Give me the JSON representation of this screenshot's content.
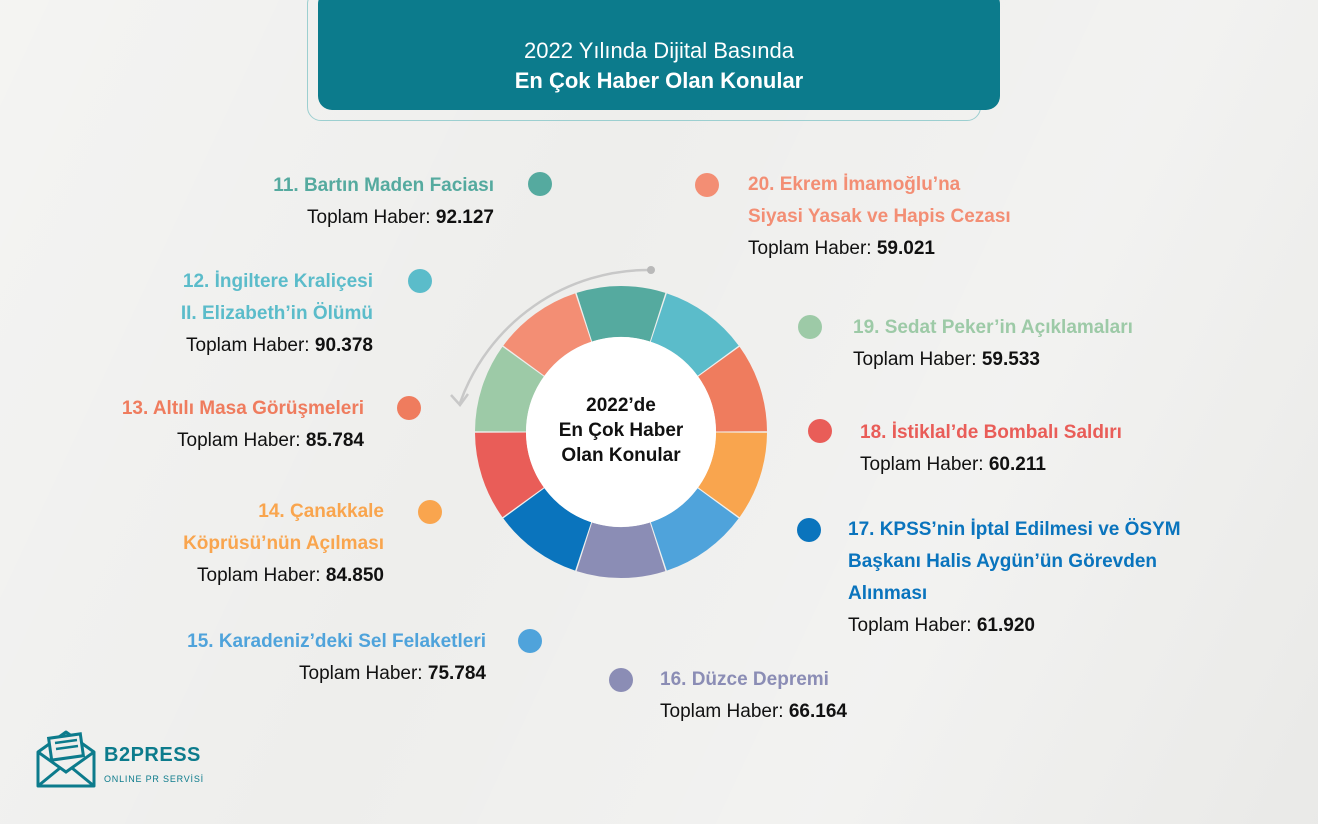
{
  "header": {
    "line1": "2022 Yılında Dijital Basında",
    "line2": "En Çok Haber Olan Konular"
  },
  "center": {
    "line1": "2022’de",
    "line2": "En Çok Haber",
    "line3": "Olan Konular"
  },
  "total_prefix": "Toplam Haber: ",
  "logo": {
    "brand": "B2PRESS",
    "subtitle": "ONLINE PR SERVİSİ"
  },
  "chart_data": {
    "type": "pie",
    "subtitle": "",
    "series": [
      {
        "values": [
          92127,
          90378,
          85784,
          84850,
          75784,
          66164,
          61920,
          60211,
          59533,
          59021
        ]
      }
    ],
    "items": [
      {
        "name": "11. Bartın Maden Faciası",
        "name_lines": [
          "11. Bartın Maden Faciası"
        ],
        "value": 92127,
        "value_label": "92.127",
        "color": "#55aa9f"
      },
      {
        "name": "12. İngiltere Kraliçesi II. Elizabeth’in Ölümü",
        "name_lines": [
          "12. İngiltere Kraliçesi",
          "II. Elizabeth’in Ölümü"
        ],
        "value": 90378,
        "value_label": "90.378",
        "color": "#5bbcca"
      },
      {
        "name": "13. Altılı Masa Görüşmeleri",
        "name_lines": [
          "13. Altılı Masa Görüşmeleri"
        ],
        "value": 85784,
        "value_label": "85.784",
        "color": "#ef7c5e"
      },
      {
        "name": "14. Çanakkale Köprüsü’nün Açılması",
        "name_lines": [
          "14. Çanakkale",
          "Köprüsü’nün Açılması"
        ],
        "value": 84850,
        "value_label": "84.850",
        "color": "#f9a54e"
      },
      {
        "name": "15. Karadeniz’deki Sel Felaketleri",
        "name_lines": [
          "15. Karadeniz’deki Sel Felaketleri"
        ],
        "value": 75784,
        "value_label": "75.784",
        "color": "#4fa3db"
      },
      {
        "name": "16. Düzce Depremi",
        "name_lines": [
          "16. Düzce Depremi"
        ],
        "value": 66164,
        "value_label": "66.164",
        "color": "#8b8db5"
      },
      {
        "name": "17. KPSS’nin İptal Edilmesi ve ÖSYM Başkanı Halis Aygün’ün Görevden Alınması",
        "name_lines": [
          "17. KPSS’nin İptal Edilmesi ve ÖSYM",
          "Başkanı Halis Aygün’ün Görevden",
          "Alınması"
        ],
        "value": 61920,
        "value_label": "61.920",
        "color": "#0a74bd"
      },
      {
        "name": "18. İstiklal’de Bombalı Saldırı",
        "name_lines": [
          "18. İstiklal’de Bombalı Saldırı"
        ],
        "value": 60211,
        "value_label": "60.211",
        "color": "#e95d58"
      },
      {
        "name": "19. Sedat Peker’in Açıklamaları",
        "name_lines": [
          "19. Sedat Peker’in Açıklamaları"
        ],
        "value": 59533,
        "value_label": "59.533",
        "color": "#9dcaa7"
      },
      {
        "name": "20. Ekrem İmamoğlu’na Siyasi Yasak ve Hapis Cezası",
        "name_lines": [
          "20. Ekrem İmamoğlu’na",
          "Siyasi Yasak ve Hapis Cezası"
        ],
        "value": 59021,
        "value_label": "59.021",
        "color": "#f38e74"
      }
    ]
  }
}
